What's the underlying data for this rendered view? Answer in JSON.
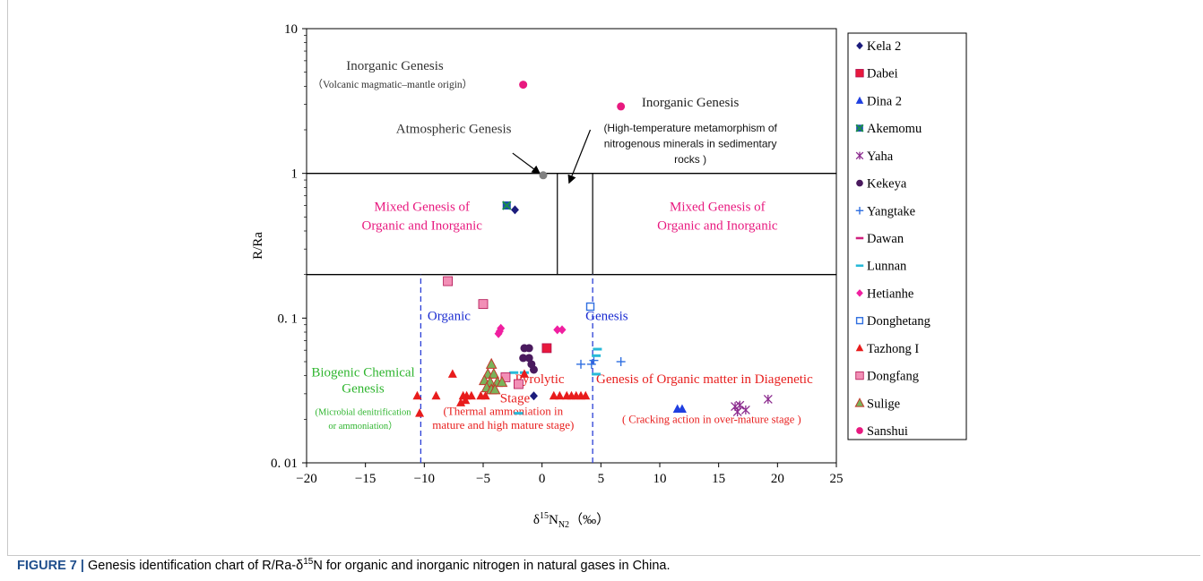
{
  "caption": {
    "label": "FIGURE 7 |",
    "text_before": " Genesis identification chart of R/Ra-δ",
    "sup": "15",
    "text_after": "N for organic and inorganic nitrogen in natural gases in China."
  },
  "chart_data": {
    "type": "scatter",
    "xlabel": "δ15NN2（‰）",
    "ylabel": "R/Ra",
    "xlim": [
      -20,
      25
    ],
    "ylim": [
      0.01,
      10
    ],
    "yscale": "log",
    "xticks": [
      -20,
      -15,
      -10,
      -5,
      0,
      5,
      10,
      15,
      20,
      25
    ],
    "xtick_labels": [
      "−20",
      "−15",
      "−10",
      "−5",
      "0",
      "5",
      "10",
      "15",
      "20",
      "25"
    ],
    "yticks": [
      0.01,
      0.1,
      1,
      10
    ],
    "ytick_labels": [
      "0. 01",
      "0. 1",
      "1",
      "10"
    ],
    "grid": false,
    "legend_position": "right",
    "region_lines": {
      "horizontal": [
        {
          "y": 1,
          "x0": -20,
          "x1": 25
        },
        {
          "y": 0.2,
          "x0": -20,
          "x1": 25
        }
      ],
      "vertical_solid": [
        {
          "x": 1.3,
          "y0": 0.2,
          "y1": 1
        },
        {
          "x": 4.3,
          "y0": 0.2,
          "y1": 1
        }
      ],
      "dashed_blue": [
        {
          "x": -10.3,
          "y0": 0.01,
          "y1": 0.2
        },
        {
          "x": 4.3,
          "y0": 0.01,
          "y1": 0.2
        }
      ]
    },
    "annotations": [
      {
        "id": "inorg1-title",
        "text": "Inorganic Genesis",
        "x": -12.5,
        "y": 5.2,
        "color": "#333333",
        "size": 15,
        "anchor": "middle"
      },
      {
        "id": "inorg1-sub",
        "text": "（Volcanic magmatic–mantle origin）",
        "x": -12.7,
        "y": 3.9,
        "color": "#333333",
        "size": 11.5,
        "anchor": "middle"
      },
      {
        "id": "inorg2-title",
        "text": "Inorganic Genesis",
        "x": 12.6,
        "y": 2.9,
        "color": "#222222",
        "size": 15,
        "anchor": "middle"
      },
      {
        "id": "inorg2-sub1",
        "text": "(High-temperature metamorphism of",
        "x": 12.6,
        "y": 1.95,
        "color": "#111111",
        "size": 12,
        "anchor": "middle",
        "sans": true
      },
      {
        "id": "inorg2-sub2",
        "text": "nitrogenous minerals in sedimentary",
        "x": 12.6,
        "y": 1.52,
        "color": "#111111",
        "size": 12,
        "anchor": "middle",
        "sans": true
      },
      {
        "id": "inorg2-sub3",
        "text": "rocks )",
        "x": 12.6,
        "y": 1.18,
        "color": "#111111",
        "size": 12,
        "anchor": "middle",
        "sans": true
      },
      {
        "id": "atmos",
        "text": "Atmospheric Genesis",
        "x": -7.5,
        "y": 1.9,
        "color": "#333333",
        "size": 15,
        "anchor": "middle"
      },
      {
        "id": "mixed-left-1",
        "text": "Mixed Genesis of",
        "x": -10.2,
        "y": 0.55,
        "color": "#e8197f",
        "size": 15,
        "anchor": "middle"
      },
      {
        "id": "mixed-left-2",
        "text": "Organic and Inorganic",
        "x": -10.2,
        "y": 0.41,
        "color": "#e8197f",
        "size": 15,
        "anchor": "middle"
      },
      {
        "id": "mixed-right-1",
        "text": "Mixed Genesis of",
        "x": 14.9,
        "y": 0.55,
        "color": "#e8197f",
        "size": 15,
        "anchor": "middle"
      },
      {
        "id": "mixed-right-2",
        "text": "Organic and Inorganic",
        "x": 14.9,
        "y": 0.41,
        "color": "#e8197f",
        "size": 15,
        "anchor": "middle"
      },
      {
        "id": "organic",
        "text": "Organic",
        "x": -7.9,
        "y": 0.097,
        "color": "#1a2bd1",
        "size": 15,
        "anchor": "middle"
      },
      {
        "id": "genesis",
        "text": "Genesis",
        "x": 5.5,
        "y": 0.097,
        "color": "#1a2bd1",
        "size": 15,
        "anchor": "middle"
      },
      {
        "id": "bio-1",
        "text": "Biogenic Chemical",
        "x": -15.2,
        "y": 0.0395,
        "color": "#2fb52f",
        "size": 15,
        "anchor": "middle"
      },
      {
        "id": "bio-2",
        "text": "Genesis",
        "x": -15.2,
        "y": 0.0305,
        "color": "#2fb52f",
        "size": 15,
        "anchor": "middle"
      },
      {
        "id": "bio-sub1",
        "text": "(Microbial denitrification",
        "x": -15.2,
        "y": 0.0215,
        "color": "#2fb52f",
        "size": 10.5,
        "anchor": "middle"
      },
      {
        "id": "bio-sub2",
        "text": "or ammoniation）",
        "x": -15.2,
        "y": 0.0172,
        "color": "#2fb52f",
        "size": 10.5,
        "anchor": "middle"
      },
      {
        "id": "pyro",
        "text": "Pyrolytic",
        "x": -0.2,
        "y": 0.0355,
        "color": "#e8201f",
        "size": 15,
        "anchor": "middle"
      },
      {
        "id": "stage",
        "text": "Stage",
        "x": -2.3,
        "y": 0.0262,
        "color": "#e8201f",
        "size": 15,
        "anchor": "middle"
      },
      {
        "id": "diag",
        "text": "Genesis of Organic matter in Diagenetic",
        "x": 13.8,
        "y": 0.0355,
        "color": "#e8201f",
        "size": 15,
        "anchor": "middle"
      },
      {
        "id": "thermal-1",
        "text": "(Thermal ammoniation in",
        "x": -3.3,
        "y": 0.0215,
        "color": "#e8201f",
        "size": 13,
        "anchor": "middle"
      },
      {
        "id": "thermal-2",
        "text": "mature and high mature stage)",
        "x": -3.3,
        "y": 0.0172,
        "color": "#e8201f",
        "size": 13,
        "anchor": "middle"
      },
      {
        "id": "crack",
        "text": "( Cracking action in over-mature stage )",
        "x": 14.4,
        "y": 0.0188,
        "color": "#e8201f",
        "size": 12.5,
        "anchor": "middle"
      }
    ],
    "arrows": [
      {
        "from": [
          -2.5,
          1.38
        ],
        "to": [
          -0.2,
          1.0
        ]
      },
      {
        "from": [
          4.1,
          2.0
        ],
        "to": [
          2.3,
          0.86
        ]
      }
    ],
    "series": [
      {
        "name": "Kela 2",
        "marker": "diamond",
        "color": "#1c1c7c",
        "points": [
          [
            -0.7,
            0.029
          ],
          [
            -2.3,
            0.56
          ]
        ]
      },
      {
        "name": "Dabei",
        "marker": "square",
        "color": "#e8193c",
        "points": [
          [
            0.4,
            0.062
          ]
        ]
      },
      {
        "name": "Dina 2",
        "marker": "triangle",
        "color": "#1f3fe0",
        "points": [
          [
            11.5,
            0.0235
          ],
          [
            11.9,
            0.0235
          ]
        ]
      },
      {
        "name": "Akemomu",
        "marker": "xsquare",
        "color": "#1a8f4a",
        "points": [
          [
            -3.0,
            0.6
          ]
        ]
      },
      {
        "name": "Yaha",
        "marker": "asterisk",
        "color": "#8b2a8e",
        "points": [
          [
            16.4,
            0.0245
          ],
          [
            16.6,
            0.0225
          ],
          [
            16.8,
            0.025
          ],
          [
            17.3,
            0.0232
          ],
          [
            19.2,
            0.0275
          ]
        ]
      },
      {
        "name": "Kekeya",
        "marker": "circle",
        "color": "#4a1a5e",
        "points": [
          [
            -1.5,
            0.062
          ],
          [
            -1.1,
            0.062
          ],
          [
            -1.6,
            0.053
          ],
          [
            -1.1,
            0.053
          ],
          [
            -0.9,
            0.048
          ],
          [
            -0.7,
            0.044
          ]
        ]
      },
      {
        "name": "Yangtake",
        "marker": "plus",
        "color": "#2f6fe0",
        "points": [
          [
            3.3,
            0.048
          ],
          [
            4.2,
            0.048
          ],
          [
            4.4,
            0.051
          ],
          [
            6.7,
            0.05
          ]
        ]
      },
      {
        "name": "Dawan",
        "marker": "dash",
        "color": "#d0207e",
        "points": []
      },
      {
        "name": "Lunnan",
        "marker": "dash",
        "color": "#27b9d8",
        "points": [
          [
            -2.4,
            0.042
          ],
          [
            -1.5,
            0.042
          ],
          [
            4.7,
            0.061
          ],
          [
            4.6,
            0.055
          ],
          [
            4.6,
            0.041
          ],
          [
            -2.0,
            0.022
          ]
        ]
      },
      {
        "name": "Hetianhe",
        "marker": "diamond",
        "color": "#f01fa0",
        "points": [
          [
            -3.5,
            0.085
          ],
          [
            -3.6,
            0.081
          ],
          [
            -3.7,
            0.078
          ],
          [
            1.3,
            0.083
          ],
          [
            1.7,
            0.083
          ]
        ]
      },
      {
        "name": "Donghetang",
        "marker": "square-open",
        "color": "#2f6fe0",
        "points": [
          [
            4.1,
            0.12
          ]
        ]
      },
      {
        "name": "Tazhong I",
        "marker": "triangle",
        "color": "#e81c1c",
        "points": [
          [
            -10.6,
            0.029
          ],
          [
            -10.4,
            0.022
          ],
          [
            -9.0,
            0.029
          ],
          [
            -7.6,
            0.041
          ],
          [
            -6.7,
            0.029
          ],
          [
            -6.4,
            0.029
          ],
          [
            -6.0,
            0.029
          ],
          [
            -6.9,
            0.026
          ],
          [
            -6.5,
            0.027
          ],
          [
            -5.2,
            0.029
          ],
          [
            -4.8,
            0.029
          ],
          [
            1.0,
            0.029
          ],
          [
            1.5,
            0.029
          ],
          [
            2.1,
            0.029
          ],
          [
            2.5,
            0.029
          ],
          [
            2.9,
            0.029
          ],
          [
            3.3,
            0.029
          ],
          [
            3.7,
            0.029
          ],
          [
            -1.5,
            0.041
          ]
        ]
      },
      {
        "name": "Dongfang",
        "marker": "square",
        "color": "#f28fb6",
        "points": [
          [
            -8.0,
            0.18
          ],
          [
            -5.0,
            0.125
          ],
          [
            -3.1,
            0.039
          ],
          [
            -2.0,
            0.035
          ]
        ]
      },
      {
        "name": "Sulige",
        "marker": "triangle-outline",
        "color": "#7ab35a",
        "points": [
          [
            -4.3,
            0.048
          ],
          [
            -4.6,
            0.041
          ],
          [
            -4.1,
            0.041
          ],
          [
            -4.9,
            0.037
          ],
          [
            -4.4,
            0.036
          ],
          [
            -3.8,
            0.036
          ],
          [
            -3.4,
            0.036
          ],
          [
            -4.7,
            0.033
          ],
          [
            -4.3,
            0.032
          ],
          [
            -4.0,
            0.032
          ]
        ]
      },
      {
        "name": "Sanshui",
        "marker": "circle",
        "color": "#e8197f",
        "points": [
          [
            -1.6,
            4.1
          ],
          [
            6.7,
            2.9
          ]
        ]
      },
      {
        "name": "",
        "marker": "circle",
        "color": "#808080",
        "legend": false,
        "points": [
          [
            0.1,
            0.97
          ]
        ]
      }
    ]
  }
}
